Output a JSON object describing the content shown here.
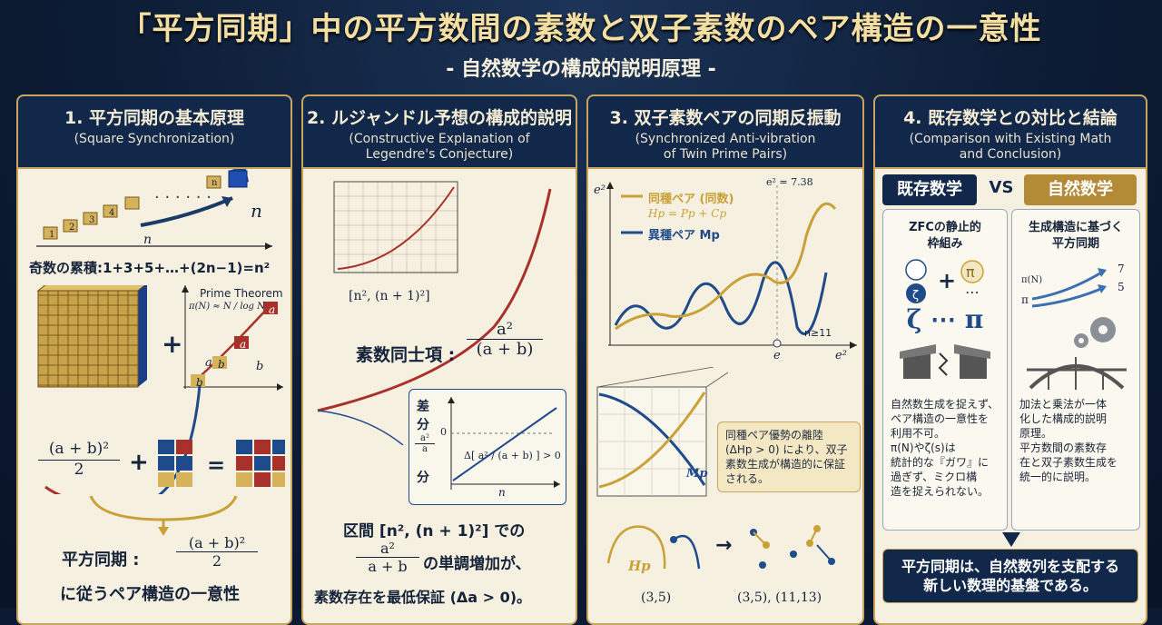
{
  "title": "「平方同期」中の平方数間の素数と双子素数のペア構造の一意性",
  "subtitle": "- 自然数学の構成的説明原理 -",
  "panels": [
    {
      "heading": "1. 平方同期の基本原理",
      "subheading": "(Square Synchronization)",
      "step_labels": [
        "1",
        "2",
        "3",
        "4",
        "n"
      ],
      "n_label_arrow": "n",
      "n_label_axis": "n",
      "odd_sum": "奇数の累積:1+3+5+…+(2n−1)=n²",
      "prime_theorem": "Prime Theorem",
      "pi_formula": "π(N) ≈ N / log N",
      "letters": {
        "a": "a",
        "b": "b"
      },
      "plus": "+",
      "equals": "=",
      "fraction": {
        "num": "(a + b)²",
        "den": "2"
      },
      "sync_label": "平方同期 :",
      "sync_num": "(a + b)²",
      "sync_den": "2",
      "bottom_text": "に従うペア構造の一意性"
    },
    {
      "heading": "2. ルジャンドル予想の構成的説明",
      "subheading_1": "(Constructive Explanation of",
      "subheading_2": "Legendre's Conjecture)",
      "interval_small": "[n², (n + 1)²]",
      "prime_term_label": "素数同士項 :",
      "prime_term_num": "a²",
      "prime_term_den": "(a + b)",
      "diff_label_1": "差",
      "diff_label_2": "分",
      "diff_label_3": "分",
      "diff_frac_num": "a²",
      "diff_frac_den": "a",
      "diff_zero": "0",
      "delta_text": "Δ[ a² / (a + b) ] > 0",
      "n_axis": "n",
      "bottom_1": "区間 [n², (n + 1)²] での",
      "bottom_frac_num": "a²",
      "bottom_frac_den": "a + b",
      "bottom_2": "の単調増加が、",
      "bottom_3": "素数存在を最低保証 (Δa > 0)。"
    },
    {
      "heading": "3. 双子素数ペアの同期反振動",
      "subheading_1": "(Synchronized Anti-vibration",
      "subheading_2": "of Twin Prime Pairs)",
      "y_label": "e²",
      "peak_label": "e² = 7.38",
      "legend_same": "同種ペア (同数)",
      "legend_formula": "Hp = Pp + Cp",
      "legend_diff": "異種ペア Mp",
      "n_cond": "n≥11",
      "x_e": "e",
      "x_e2": "e²",
      "mp_label": "Mp",
      "note": "同種ペア優勢の離陸 (ΔHp > 0) により、双子素数生成が構造的に保証される。",
      "hp_label": "Hp",
      "arrow": "→",
      "pair_1": "(3,5)",
      "pair_2": "(3,5), (11,13)",
      "colors": {
        "gold": "#c9a136",
        "navy": "#1f4b8a",
        "red": "#a8312b"
      }
    },
    {
      "heading": "4. 既存数学との対比と結論",
      "subheading_1": "(Comparison with Existing Math",
      "subheading_2": "and Conclusion)",
      "left_head": "既存数学",
      "vs": "VS",
      "right_head": "自然数学",
      "left_title_1": "ZFCの静止的",
      "left_title_2": "枠組み",
      "right_title_1": "生成構造に基づく",
      "right_title_2": "平方同期",
      "left_symbols": "ζ ⋯ π",
      "right_mini_1": "π(N)",
      "right_mini_2": "π",
      "right_mini_3": "7",
      "right_mini_4": "5",
      "left_body": [
        "自然数生成を捉えず、",
        "ペア構造の一意性を",
        "利用不可。",
        "π(N)やζ(s)は",
        "統計的な『ガワ』に",
        "過ぎず、ミクロ構",
        "造を捉えられない。"
      ],
      "right_body": [
        "加法と乗法が一体",
        "化した構成的説明",
        "原理。",
        "平方数間の素数存",
        "在と双子素数生成を",
        "統一的に説明。"
      ],
      "conclusion_1": "平方同期は、自然数列を支配する",
      "conclusion_2": "新しい数理的基盤である。"
    }
  ]
}
